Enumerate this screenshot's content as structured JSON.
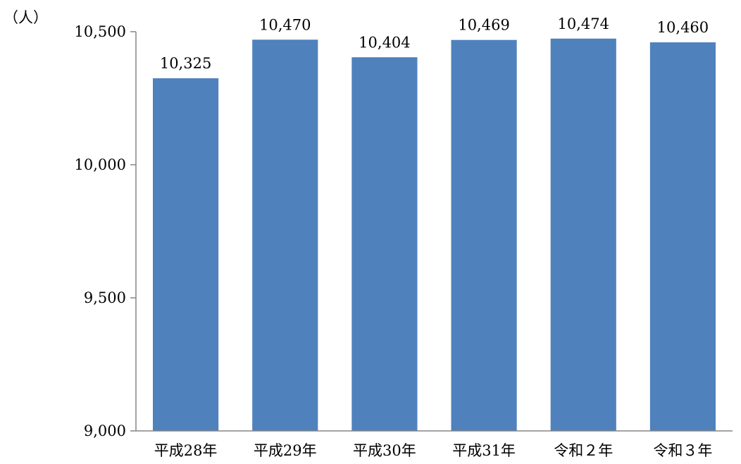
{
  "chart_data": {
    "type": "bar",
    "unit_label": "（人）",
    "categories": [
      "平成28年",
      "平成29年",
      "平成30年",
      "平成31年",
      "令和２年",
      "令和３年"
    ],
    "values": [
      10325,
      10470,
      10404,
      10469,
      10474,
      10460
    ],
    "value_labels": [
      "10,325",
      "10,470",
      "10,404",
      "10,469",
      "10,474",
      "10,460"
    ],
    "ylim": [
      9000,
      10500
    ],
    "y_ticks": [
      9000,
      9500,
      10000,
      10500
    ],
    "y_tick_labels": [
      "9,000",
      "9,500",
      "10,000",
      "10,500"
    ],
    "bar_color": "#4f81bd",
    "grid": false,
    "legend": "none"
  }
}
